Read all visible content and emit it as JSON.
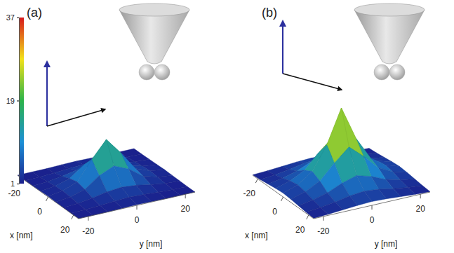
{
  "chart_data": [
    {
      "type": "surface",
      "title": "(a)",
      "xlabel": "x [nm]",
      "ylabel": "y [nm]",
      "x": [
        -24,
        -18,
        -12,
        -6,
        0,
        6,
        12,
        18,
        24
      ],
      "y": [
        -24,
        -18,
        -12,
        -6,
        0,
        6,
        12,
        18,
        24
      ],
      "xlim": [
        -24,
        24
      ],
      "ylim": [
        -24,
        24
      ],
      "xticks": [
        -20,
        0,
        20
      ],
      "yticks": [
        -20,
        0,
        20
      ],
      "zlim": [
        1,
        37
      ],
      "colorbar_ticks": [
        1,
        19,
        37
      ],
      "z": [
        [
          1,
          1,
          1,
          1.2,
          1.3,
          1.2,
          1,
          1,
          1
        ],
        [
          1,
          1.2,
          1.5,
          2,
          2.3,
          2,
          1.5,
          1.2,
          1
        ],
        [
          1.1,
          1.5,
          2.5,
          3.8,
          4.5,
          3.8,
          2.5,
          1.5,
          1.1
        ],
        [
          1.2,
          2,
          4,
          9,
          12,
          9,
          4,
          2,
          1.2
        ],
        [
          1.3,
          2.3,
          5,
          14,
          22,
          14,
          5,
          2.3,
          1.3
        ],
        [
          1.2,
          2,
          4,
          9,
          12,
          9,
          4,
          2,
          1.2
        ],
        [
          1.1,
          1.5,
          2.5,
          3.8,
          4.5,
          3.8,
          2.5,
          1.5,
          1.1
        ],
        [
          1,
          1.2,
          1.5,
          2,
          2.3,
          2,
          1.5,
          1.2,
          1
        ],
        [
          1,
          1,
          1,
          1.2,
          1.3,
          1.2,
          1,
          1,
          1
        ]
      ]
    },
    {
      "type": "surface",
      "title": "(b)",
      "xlabel": "x [nm]",
      "ylabel": "y [nm]",
      "x": [
        -24,
        -18,
        -12,
        -6,
        0,
        6,
        12,
        18,
        24
      ],
      "y": [
        -24,
        -18,
        -12,
        -6,
        0,
        6,
        12,
        18,
        24
      ],
      "xlim": [
        -24,
        24
      ],
      "ylim": [
        -24,
        24
      ],
      "xticks": [
        -20,
        0,
        20
      ],
      "yticks": [
        -20,
        0,
        20
      ],
      "zlim": [
        1,
        37
      ],
      "z": [
        [
          1.2,
          1.5,
          2,
          2.5,
          2.8,
          2.5,
          2,
          1.5,
          1.2
        ],
        [
          1.5,
          2.2,
          3.2,
          4.5,
          5.2,
          4.5,
          3.2,
          2.2,
          1.5
        ],
        [
          2,
          3.2,
          5,
          8,
          10,
          8,
          5,
          3.2,
          2
        ],
        [
          2.5,
          4.5,
          8,
          15,
          21,
          15,
          8,
          4.5,
          2.5
        ],
        [
          2.8,
          5.2,
          10,
          21,
          37,
          21,
          10,
          5.2,
          2.8
        ],
        [
          2.5,
          4.5,
          8,
          15,
          21,
          15,
          8,
          4.5,
          2.5
        ],
        [
          2,
          3.2,
          5,
          8,
          10,
          8,
          5,
          3.2,
          2
        ],
        [
          1.5,
          2.2,
          3.2,
          4.5,
          5.2,
          4.5,
          3.2,
          2.2,
          1.5
        ],
        [
          1.2,
          1.5,
          2,
          2.5,
          2.8,
          2.5,
          2,
          1.5,
          1.2
        ]
      ]
    }
  ]
}
